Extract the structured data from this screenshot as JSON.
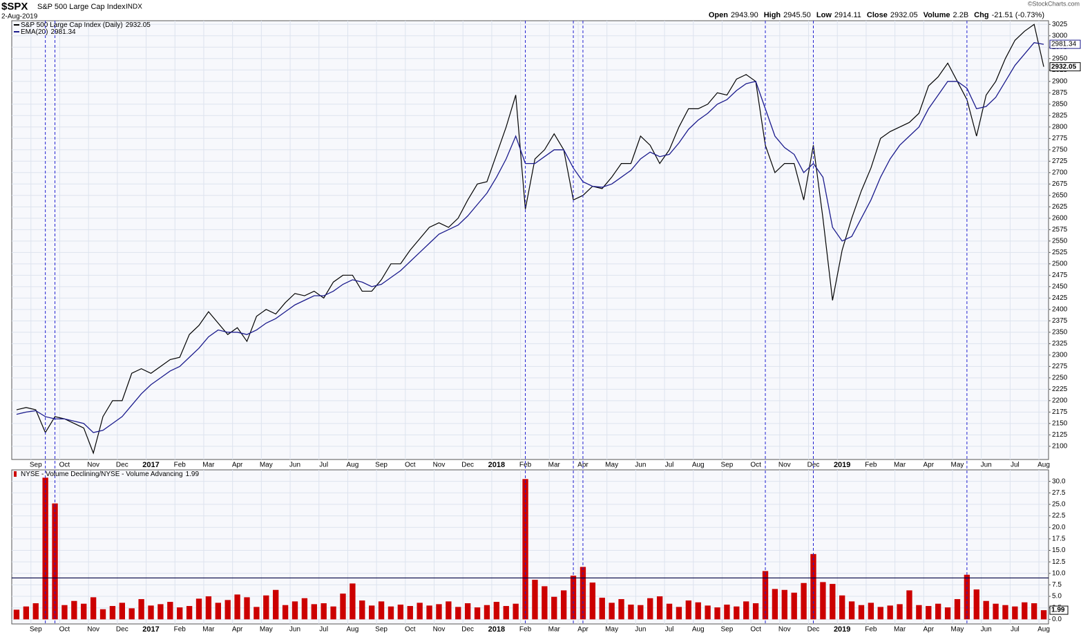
{
  "header": {
    "symbol": "$SPX",
    "name": "S&P 500 Large Cap Index",
    "exchange": "INDX",
    "date": "2-Aug-2019",
    "credit": "©StockCharts.com",
    "stats": [
      {
        "label": "Open",
        "value": "2943.90"
      },
      {
        "label": "High",
        "value": "2945.50"
      },
      {
        "label": "Low",
        "value": "2914.11"
      },
      {
        "label": "Close",
        "value": "2932.05"
      },
      {
        "label": "Volume",
        "value": "2.2B"
      },
      {
        "label": "Chg",
        "value": "-21.51 (-0.73%)"
      }
    ]
  },
  "chart_data": [
    {
      "type": "line",
      "legend": "top-left",
      "grid": true,
      "categories": [
        null,
        null,
        "Sep",
        null,
        null,
        "Oct",
        null,
        null,
        "Nov",
        null,
        null,
        "Dec",
        null,
        null,
        "2017",
        null,
        null,
        "Feb",
        null,
        null,
        "Mar",
        null,
        null,
        "Apr",
        null,
        null,
        "May",
        null,
        null,
        "Jun",
        null,
        null,
        "Jul",
        null,
        null,
        "Aug",
        null,
        null,
        "Sep",
        null,
        null,
        "Oct",
        null,
        null,
        "Nov",
        null,
        null,
        "Dec",
        null,
        null,
        "2018",
        null,
        null,
        "Feb",
        null,
        null,
        "Mar",
        null,
        null,
        "Apr",
        null,
        null,
        "May",
        null,
        null,
        "Jun",
        null,
        null,
        "Jul",
        null,
        null,
        "Aug",
        null,
        null,
        "Sep",
        null,
        null,
        "Oct",
        null,
        null,
        "Nov",
        null,
        null,
        "Dec",
        null,
        null,
        "2019",
        null,
        null,
        "Feb",
        null,
        null,
        "Mar",
        null,
        null,
        "Apr",
        null,
        null,
        "May",
        null,
        null,
        "Jun",
        null,
        null,
        "Jul",
        null,
        null,
        "Aug"
      ],
      "series": [
        {
          "name": "S&P 500 Large Cap Index (Daily)",
          "color": "#000000",
          "values": [
            2180,
            2185,
            2180,
            2130,
            2165,
            2160,
            2150,
            2140,
            2085,
            2165,
            2200,
            2200,
            2260,
            2270,
            2260,
            2275,
            2290,
            2295,
            2345,
            2365,
            2395,
            2370,
            2345,
            2360,
            2330,
            2385,
            2400,
            2390,
            2415,
            2435,
            2430,
            2440,
            2425,
            2460,
            2475,
            2475,
            2440,
            2440,
            2465,
            2500,
            2500,
            2530,
            2555,
            2580,
            2590,
            2580,
            2600,
            2640,
            2675,
            2680,
            2740,
            2800,
            2870,
            2620,
            2730,
            2750,
            2785,
            2750,
            2640,
            2650,
            2670,
            2665,
            2690,
            2720,
            2720,
            2780,
            2760,
            2720,
            2750,
            2800,
            2840,
            2840,
            2850,
            2875,
            2870,
            2905,
            2915,
            2900,
            2760,
            2700,
            2720,
            2720,
            2640,
            2760,
            2600,
            2420,
            2530,
            2600,
            2660,
            2710,
            2775,
            2790,
            2800,
            2810,
            2830,
            2890,
            2910,
            2940,
            2900,
            2860,
            2780,
            2870,
            2900,
            2950,
            2990,
            3010,
            3025,
            2932.05
          ]
        },
        {
          "name": "EMA(20)",
          "color": "#1a1a8c",
          "values": [
            2170,
            2175,
            2178,
            2165,
            2160,
            2160,
            2155,
            2150,
            2130,
            2135,
            2150,
            2165,
            2190,
            2215,
            2235,
            2250,
            2265,
            2275,
            2295,
            2315,
            2340,
            2355,
            2350,
            2350,
            2345,
            2355,
            2370,
            2380,
            2395,
            2410,
            2420,
            2430,
            2430,
            2440,
            2455,
            2465,
            2460,
            2450,
            2455,
            2470,
            2485,
            2505,
            2525,
            2545,
            2565,
            2575,
            2585,
            2605,
            2630,
            2655,
            2690,
            2730,
            2780,
            2720,
            2720,
            2735,
            2750,
            2750,
            2710,
            2680,
            2670,
            2668,
            2675,
            2690,
            2705,
            2730,
            2745,
            2735,
            2740,
            2765,
            2795,
            2815,
            2830,
            2850,
            2860,
            2880,
            2895,
            2900,
            2840,
            2780,
            2755,
            2740,
            2700,
            2720,
            2690,
            2580,
            2550,
            2560,
            2600,
            2640,
            2690,
            2730,
            2760,
            2780,
            2800,
            2840,
            2870,
            2900,
            2900,
            2885,
            2840,
            2845,
            2865,
            2900,
            2935,
            2960,
            2985,
            2981.34
          ]
        }
      ],
      "ylim": [
        2071,
        3033
      ],
      "yticks": [
        2100,
        2125,
        2150,
        2175,
        2200,
        2225,
        2250,
        2275,
        2300,
        2325,
        2350,
        2375,
        2400,
        2425,
        2450,
        2475,
        2500,
        2525,
        2550,
        2575,
        2600,
        2625,
        2650,
        2675,
        2700,
        2725,
        2750,
        2775,
        2800,
        2825,
        2850,
        2875,
        2900,
        2925,
        2950,
        2975,
        3000,
        3025
      ]
    },
    {
      "type": "bar",
      "legend": "top-left",
      "grid": true,
      "threshold": 9,
      "categories": [
        null,
        null,
        "Sep",
        null,
        null,
        "Oct",
        null,
        null,
        "Nov",
        null,
        null,
        "Dec",
        null,
        null,
        "2017",
        null,
        null,
        "Feb",
        null,
        null,
        "Mar",
        null,
        null,
        "Apr",
        null,
        null,
        "May",
        null,
        null,
        "Jun",
        null,
        null,
        "Jul",
        null,
        null,
        "Aug",
        null,
        null,
        "Sep",
        null,
        null,
        "Oct",
        null,
        null,
        "Nov",
        null,
        null,
        "Dec",
        null,
        null,
        "2018",
        null,
        null,
        "Feb",
        null,
        null,
        "Mar",
        null,
        null,
        "Apr",
        null,
        null,
        "May",
        null,
        null,
        "Jun",
        null,
        null,
        "Jul",
        null,
        null,
        "Aug",
        null,
        null,
        "Sep",
        null,
        null,
        "Oct",
        null,
        null,
        "Nov",
        null,
        null,
        "Dec",
        null,
        null,
        "2019",
        null,
        null,
        "Feb",
        null,
        null,
        "Mar",
        null,
        null,
        "Apr",
        null,
        null,
        "May",
        null,
        null,
        "Jun",
        null,
        null,
        "Jul",
        null,
        null,
        "Aug"
      ],
      "series": [
        {
          "name": "NYSE - Volume Declining/NYSE - Volume Advancing",
          "color": "#cc0000",
          "values": [
            2.1,
            2.8,
            3.5,
            30.8,
            25.2,
            3.1,
            4.0,
            3.4,
            4.8,
            2.2,
            2.9,
            3.6,
            2.4,
            4.4,
            3.0,
            3.3,
            3.8,
            2.6,
            2.9,
            4.5,
            5.0,
            3.6,
            4.2,
            5.4,
            4.8,
            2.7,
            5.2,
            6.4,
            3.1,
            3.9,
            4.6,
            3.3,
            3.5,
            2.8,
            5.6,
            7.8,
            4.1,
            3.0,
            3.9,
            2.8,
            3.2,
            2.9,
            3.6,
            3.0,
            3.3,
            3.9,
            2.7,
            3.5,
            2.6,
            3.1,
            3.8,
            2.9,
            3.4,
            30.5,
            8.6,
            7.2,
            4.9,
            6.3,
            9.5,
            11.4,
            8.0,
            4.7,
            3.6,
            4.4,
            3.2,
            3.1,
            4.6,
            5.0,
            3.4,
            2.7,
            4.1,
            3.7,
            3.0,
            2.6,
            3.2,
            2.8,
            3.9,
            3.5,
            10.5,
            6.6,
            6.4,
            5.8,
            7.9,
            14.2,
            8.1,
            7.7,
            5.2,
            3.9,
            3.1,
            3.6,
            2.7,
            3.0,
            3.3,
            6.3,
            3.1,
            2.9,
            3.4,
            2.6,
            4.4,
            9.7,
            6.5,
            4.0,
            3.4,
            3.1,
            2.8,
            3.7,
            3.5,
            1.99
          ]
        }
      ],
      "ylim": [
        -1,
        32.5
      ],
      "yticks": [
        {
          "value": 0,
          "label": "0.0"
        },
        2.5,
        {
          "value": 5,
          "label": "5.0"
        },
        7.5,
        {
          "value": 10,
          "label": "10.0"
        },
        12.5,
        {
          "value": 15,
          "label": "15.0"
        },
        17.5,
        {
          "value": 20,
          "label": "20.0"
        },
        22.5,
        {
          "value": 25,
          "label": "25.0"
        },
        27.5,
        {
          "value": 30,
          "label": "30.0"
        }
      ]
    }
  ]
}
